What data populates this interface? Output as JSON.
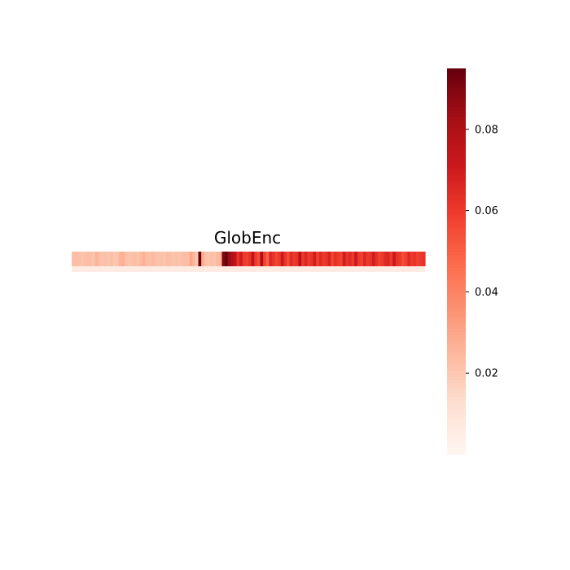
{
  "chart_data": {
    "type": "heatmap",
    "title": "GlobEnc",
    "xlabel": "",
    "ylabel": "",
    "colormap": "Reds",
    "colorbar": {
      "range": [
        0.0,
        0.095
      ],
      "ticks": [
        0.02,
        0.04,
        0.06,
        0.08
      ],
      "tick_labels": [
        "0.02",
        "0.04",
        "0.06",
        "0.08"
      ]
    },
    "grid": false,
    "rows": 1,
    "columns": 120,
    "note_cells": "single-row attribution map; values per token position",
    "values": [
      0.022,
      0.023,
      0.022,
      0.021,
      0.022,
      0.023,
      0.022,
      0.021,
      0.026,
      0.022,
      0.021,
      0.022,
      0.021,
      0.022,
      0.02,
      0.021,
      0.026,
      0.027,
      0.022,
      0.021,
      0.022,
      0.023,
      0.021,
      0.024,
      0.027,
      0.023,
      0.022,
      0.024,
      0.022,
      0.021,
      0.022,
      0.021,
      0.023,
      0.022,
      0.021,
      0.022,
      0.021,
      0.022,
      0.023,
      0.022,
      0.03,
      0.025,
      0.02,
      0.095,
      0.028,
      0.022,
      0.021,
      0.022,
      0.021,
      0.024,
      0.025,
      0.09,
      0.095,
      0.085,
      0.08,
      0.075,
      0.062,
      0.07,
      0.06,
      0.058,
      0.062,
      0.075,
      0.06,
      0.055,
      0.082,
      0.058,
      0.05,
      0.066,
      0.062,
      0.057,
      0.06,
      0.072,
      0.062,
      0.055,
      0.065,
      0.06,
      0.062,
      0.078,
      0.06,
      0.066,
      0.06,
      0.062,
      0.07,
      0.058,
      0.065,
      0.06,
      0.062,
      0.068,
      0.057,
      0.063,
      0.06,
      0.058,
      0.07,
      0.062,
      0.065,
      0.06,
      0.072,
      0.06,
      0.058,
      0.066,
      0.06,
      0.062,
      0.07,
      0.063,
      0.058,
      0.06,
      0.065,
      0.066,
      0.06,
      0.072,
      0.062,
      0.06,
      0.055,
      0.058,
      0.065,
      0.06,
      0.062,
      0.058,
      0.06,
      0.062
    ]
  }
}
